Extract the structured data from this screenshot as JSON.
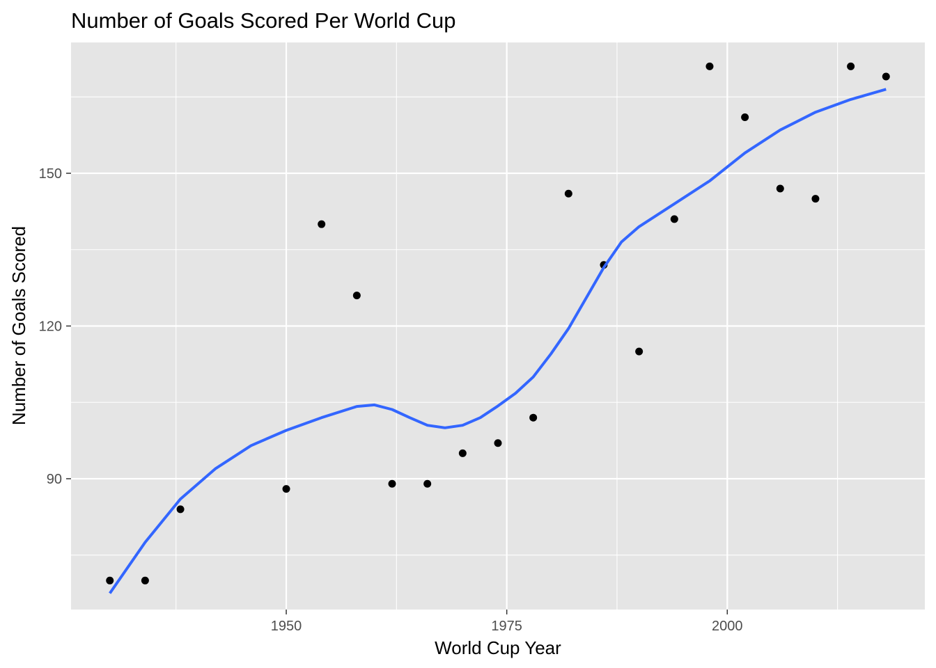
{
  "chart_data": {
    "type": "scatter",
    "title": "Number of Goals Scored Per World Cup",
    "xlabel": "World Cup Year",
    "ylabel": "Number of Goals Scored",
    "xlim": [
      1925.6,
      2022.4
    ],
    "ylim": [
      64.3,
      175.7
    ],
    "x_ticks": [
      1950,
      1975,
      2000
    ],
    "x_tick_labels": [
      "1950",
      "1975",
      "2000"
    ],
    "x_minor_ticks": [
      1937.5,
      1962.5,
      1987.5,
      2012.5
    ],
    "y_ticks": [
      90,
      120,
      150
    ],
    "y_tick_labels": [
      "90",
      "120",
      "150"
    ],
    "y_minor_ticks": [
      75,
      105,
      135,
      165
    ],
    "grid": true,
    "background": "#e5e5e5",
    "point_color": "#000000",
    "series": [
      {
        "type": "scatter",
        "x": [
          1930,
          1934,
          1938,
          1950,
          1954,
          1958,
          1962,
          1966,
          1970,
          1974,
          1978,
          1982,
          1986,
          1990,
          1994,
          1998,
          2002,
          2006,
          2010,
          2014,
          2018
        ],
        "y": [
          70,
          70,
          84,
          88,
          140,
          126,
          89,
          89,
          95,
          97,
          102,
          146,
          132,
          115,
          141,
          171,
          161,
          147,
          145,
          171,
          169
        ]
      },
      {
        "type": "smooth-line",
        "color": "#3366ff",
        "x": [
          1930,
          1934,
          1938,
          1942,
          1946,
          1950,
          1954,
          1958,
          1960,
          1962,
          1964,
          1966,
          1968,
          1970,
          1972,
          1974,
          1976,
          1978,
          1980,
          1982,
          1984,
          1986,
          1988,
          1990,
          1994,
          1998,
          2002,
          2006,
          2010,
          2014,
          2018
        ],
        "y": [
          67.5,
          77.5,
          86,
          92,
          96.5,
          99.5,
          102,
          104.2,
          104.5,
          103.6,
          102,
          100.5,
          100,
          100.5,
          102,
          104.3,
          106.8,
          110,
          114.5,
          119.5,
          125.5,
          131.5,
          136.5,
          139.5,
          144,
          148.5,
          154,
          158.5,
          162,
          164.5,
          166.5
        ]
      }
    ]
  }
}
